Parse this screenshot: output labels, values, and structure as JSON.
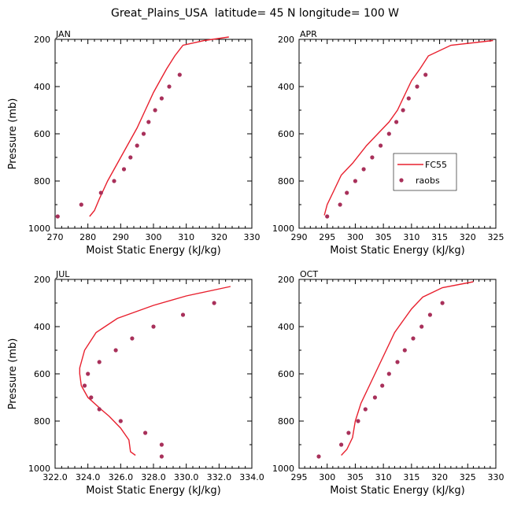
{
  "title": "Great_Plains_USA  latitude= 45 N longitude= 100 W",
  "legend": {
    "line_label": "FC55",
    "points_label": "raobs",
    "placement": "inside APR panel, right"
  },
  "colors": {
    "line": "#e8202e",
    "points": "#a8305a"
  },
  "chart_data": [
    {
      "type": "line",
      "panel_title": "JAN",
      "xlabel": "Moist Static Energy (kJ/kg)",
      "ylabel": "Pressure (mb)",
      "xlim": [
        270,
        330
      ],
      "ylim": [
        200,
        1000
      ],
      "y_inverted": true,
      "xticks": [
        "270",
        "280",
        "290",
        "300",
        "310",
        "320",
        "330"
      ],
      "yticks": [
        "200",
        "400",
        "600",
        "800",
        "1000"
      ],
      "series": [
        {
          "name": "FC55",
          "kind": "line",
          "x": [
            280.5,
            282.0,
            283.5,
            286.0,
            289.0,
            292.0,
            295.0,
            297.5,
            300.0,
            302.0,
            304.0,
            306.5,
            309.0,
            315.5,
            323.0
          ],
          "y": [
            950,
            925,
            875,
            800,
            725,
            650,
            575,
            500,
            425,
            375,
            325,
            270,
            225,
            205,
            190
          ]
        },
        {
          "name": "raobs",
          "kind": "points",
          "x": [
            270.8,
            278.0,
            284.0,
            288.0,
            291.0,
            293.0,
            295.0,
            297.0,
            298.5,
            300.5,
            302.5,
            304.8,
            308.0
          ],
          "y": [
            950,
            900,
            850,
            800,
            750,
            700,
            650,
            600,
            550,
            500,
            450,
            400,
            350
          ]
        }
      ]
    },
    {
      "type": "line",
      "panel_title": "APR",
      "xlabel": "Moist Static Energy (kJ/kg)",
      "ylabel": "",
      "xlim": [
        290,
        325
      ],
      "ylim": [
        200,
        1000
      ],
      "y_inverted": true,
      "xticks": [
        "290",
        "295",
        "300",
        "305",
        "310",
        "315",
        "320",
        "325"
      ],
      "yticks": [
        "200",
        "400",
        "600",
        "800",
        "1000"
      ],
      "series": [
        {
          "name": "FC55",
          "kind": "line",
          "x": [
            294.5,
            295.0,
            296.0,
            297.5,
            299.5,
            302.0,
            304.0,
            306.0,
            307.5,
            309.0,
            310.0,
            311.5,
            313.0,
            317.0,
            324.5
          ],
          "y": [
            945,
            900,
            850,
            775,
            725,
            650,
            600,
            550,
            500,
            425,
            375,
            325,
            270,
            225,
            205
          ]
        },
        {
          "name": "raobs",
          "kind": "points",
          "x": [
            295.0,
            297.3,
            298.5,
            300.0,
            301.5,
            303.0,
            304.5,
            306.0,
            307.3,
            308.5,
            309.5,
            311.0,
            312.5
          ],
          "y": [
            950,
            900,
            850,
            800,
            750,
            700,
            650,
            600,
            550,
            500,
            450,
            400,
            350
          ]
        }
      ]
    },
    {
      "type": "line",
      "panel_title": "JUL",
      "xlabel": "Moist Static Energy (kJ/kg)",
      "ylabel": "Pressure (mb)",
      "xlim": [
        322,
        334
      ],
      "ylim": [
        200,
        1000
      ],
      "y_inverted": true,
      "xticks": [
        "322.0",
        "324.0",
        "326.0",
        "328.0",
        "330.0",
        "332.0",
        "334.0"
      ],
      "yticks": [
        "200",
        "400",
        "600",
        "800",
        "1000"
      ],
      "series": [
        {
          "name": "FC55",
          "kind": "line",
          "x": [
            326.9,
            326.6,
            326.5,
            326.0,
            325.3,
            324.8,
            324.0,
            323.6,
            323.5,
            323.5,
            323.8,
            324.5,
            325.8,
            328.0,
            330.0,
            332.7
          ],
          "y": [
            945,
            930,
            880,
            830,
            780,
            750,
            700,
            650,
            600,
            575,
            500,
            425,
            365,
            310,
            270,
            230
          ]
        },
        {
          "name": "raobs",
          "kind": "points",
          "x": [
            328.5,
            328.5,
            327.5,
            326.0,
            324.7,
            324.2,
            323.8,
            324.0,
            324.7,
            325.7,
            326.7,
            328.0,
            329.8,
            331.7
          ],
          "y": [
            950,
            900,
            850,
            800,
            750,
            700,
            650,
            600,
            550,
            500,
            450,
            400,
            350,
            300
          ]
        }
      ]
    },
    {
      "type": "line",
      "panel_title": "OCT",
      "xlabel": "Moist Static Energy (kJ/kg)",
      "ylabel": "",
      "xlim": [
        295,
        330
      ],
      "ylim": [
        200,
        1000
      ],
      "y_inverted": true,
      "xticks": [
        "295",
        "300",
        "305",
        "310",
        "315",
        "320",
        "325",
        "330"
      ],
      "yticks": [
        "200",
        "400",
        "600",
        "800",
        "1000"
      ],
      "series": [
        {
          "name": "FC55",
          "kind": "line",
          "x": [
            302.5,
            303.5,
            304.5,
            305.0,
            306.0,
            307.5,
            309.0,
            310.5,
            312.0,
            313.5,
            315.0,
            317.0,
            320.5,
            326.0
          ],
          "y": [
            945,
            920,
            870,
            800,
            725,
            650,
            575,
            500,
            425,
            375,
            325,
            275,
            235,
            210
          ]
        },
        {
          "name": "raobs",
          "kind": "points",
          "x": [
            298.5,
            302.5,
            303.8,
            305.5,
            306.8,
            308.5,
            309.8,
            311.0,
            312.5,
            313.8,
            315.3,
            316.8,
            318.3,
            320.5
          ],
          "y": [
            950,
            900,
            850,
            800,
            750,
            700,
            650,
            600,
            550,
            500,
            450,
            400,
            350,
            300
          ]
        }
      ]
    }
  ]
}
